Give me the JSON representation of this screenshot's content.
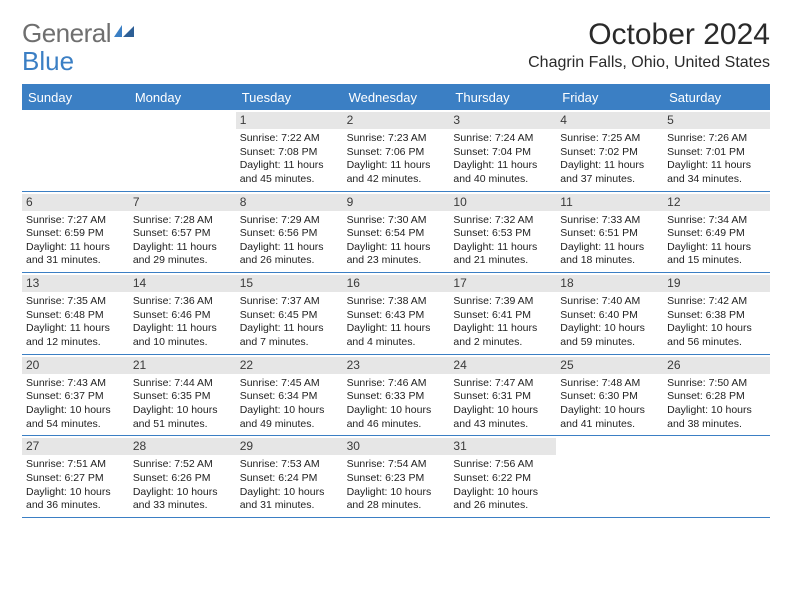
{
  "logo": {
    "text1": "General",
    "text2": "Blue"
  },
  "title": "October 2024",
  "location": "Chagrin Falls, Ohio, United States",
  "colors": {
    "accent": "#3b7fc4",
    "dayheader_bg": "#e6e6e6",
    "logo_gray": "#6f6f6f",
    "text": "#2a2a2a"
  },
  "days_of_week": [
    "Sunday",
    "Monday",
    "Tuesday",
    "Wednesday",
    "Thursday",
    "Friday",
    "Saturday"
  ],
  "weeks": [
    [
      {
        "empty": true
      },
      {
        "empty": true
      },
      {
        "n": "1",
        "sunrise": "7:22 AM",
        "sunset": "7:08 PM",
        "daylight": "11 hours and 45 minutes."
      },
      {
        "n": "2",
        "sunrise": "7:23 AM",
        "sunset": "7:06 PM",
        "daylight": "11 hours and 42 minutes."
      },
      {
        "n": "3",
        "sunrise": "7:24 AM",
        "sunset": "7:04 PM",
        "daylight": "11 hours and 40 minutes."
      },
      {
        "n": "4",
        "sunrise": "7:25 AM",
        "sunset": "7:02 PM",
        "daylight": "11 hours and 37 minutes."
      },
      {
        "n": "5",
        "sunrise": "7:26 AM",
        "sunset": "7:01 PM",
        "daylight": "11 hours and 34 minutes."
      }
    ],
    [
      {
        "n": "6",
        "sunrise": "7:27 AM",
        "sunset": "6:59 PM",
        "daylight": "11 hours and 31 minutes."
      },
      {
        "n": "7",
        "sunrise": "7:28 AM",
        "sunset": "6:57 PM",
        "daylight": "11 hours and 29 minutes."
      },
      {
        "n": "8",
        "sunrise": "7:29 AM",
        "sunset": "6:56 PM",
        "daylight": "11 hours and 26 minutes."
      },
      {
        "n": "9",
        "sunrise": "7:30 AM",
        "sunset": "6:54 PM",
        "daylight": "11 hours and 23 minutes."
      },
      {
        "n": "10",
        "sunrise": "7:32 AM",
        "sunset": "6:53 PM",
        "daylight": "11 hours and 21 minutes."
      },
      {
        "n": "11",
        "sunrise": "7:33 AM",
        "sunset": "6:51 PM",
        "daylight": "11 hours and 18 minutes."
      },
      {
        "n": "12",
        "sunrise": "7:34 AM",
        "sunset": "6:49 PM",
        "daylight": "11 hours and 15 minutes."
      }
    ],
    [
      {
        "n": "13",
        "sunrise": "7:35 AM",
        "sunset": "6:48 PM",
        "daylight": "11 hours and 12 minutes."
      },
      {
        "n": "14",
        "sunrise": "7:36 AM",
        "sunset": "6:46 PM",
        "daylight": "11 hours and 10 minutes."
      },
      {
        "n": "15",
        "sunrise": "7:37 AM",
        "sunset": "6:45 PM",
        "daylight": "11 hours and 7 minutes."
      },
      {
        "n": "16",
        "sunrise": "7:38 AM",
        "sunset": "6:43 PM",
        "daylight": "11 hours and 4 minutes."
      },
      {
        "n": "17",
        "sunrise": "7:39 AM",
        "sunset": "6:41 PM",
        "daylight": "11 hours and 2 minutes."
      },
      {
        "n": "18",
        "sunrise": "7:40 AM",
        "sunset": "6:40 PM",
        "daylight": "10 hours and 59 minutes."
      },
      {
        "n": "19",
        "sunrise": "7:42 AM",
        "sunset": "6:38 PM",
        "daylight": "10 hours and 56 minutes."
      }
    ],
    [
      {
        "n": "20",
        "sunrise": "7:43 AM",
        "sunset": "6:37 PM",
        "daylight": "10 hours and 54 minutes."
      },
      {
        "n": "21",
        "sunrise": "7:44 AM",
        "sunset": "6:35 PM",
        "daylight": "10 hours and 51 minutes."
      },
      {
        "n": "22",
        "sunrise": "7:45 AM",
        "sunset": "6:34 PM",
        "daylight": "10 hours and 49 minutes."
      },
      {
        "n": "23",
        "sunrise": "7:46 AM",
        "sunset": "6:33 PM",
        "daylight": "10 hours and 46 minutes."
      },
      {
        "n": "24",
        "sunrise": "7:47 AM",
        "sunset": "6:31 PM",
        "daylight": "10 hours and 43 minutes."
      },
      {
        "n": "25",
        "sunrise": "7:48 AM",
        "sunset": "6:30 PM",
        "daylight": "10 hours and 41 minutes."
      },
      {
        "n": "26",
        "sunrise": "7:50 AM",
        "sunset": "6:28 PM",
        "daylight": "10 hours and 38 minutes."
      }
    ],
    [
      {
        "n": "27",
        "sunrise": "7:51 AM",
        "sunset": "6:27 PM",
        "daylight": "10 hours and 36 minutes."
      },
      {
        "n": "28",
        "sunrise": "7:52 AM",
        "sunset": "6:26 PM",
        "daylight": "10 hours and 33 minutes."
      },
      {
        "n": "29",
        "sunrise": "7:53 AM",
        "sunset": "6:24 PM",
        "daylight": "10 hours and 31 minutes."
      },
      {
        "n": "30",
        "sunrise": "7:54 AM",
        "sunset": "6:23 PM",
        "daylight": "10 hours and 28 minutes."
      },
      {
        "n": "31",
        "sunrise": "7:56 AM",
        "sunset": "6:22 PM",
        "daylight": "10 hours and 26 minutes."
      },
      {
        "empty": true
      },
      {
        "empty": true
      }
    ]
  ],
  "labels": {
    "sunrise": "Sunrise:",
    "sunset": "Sunset:",
    "daylight": "Daylight:"
  }
}
